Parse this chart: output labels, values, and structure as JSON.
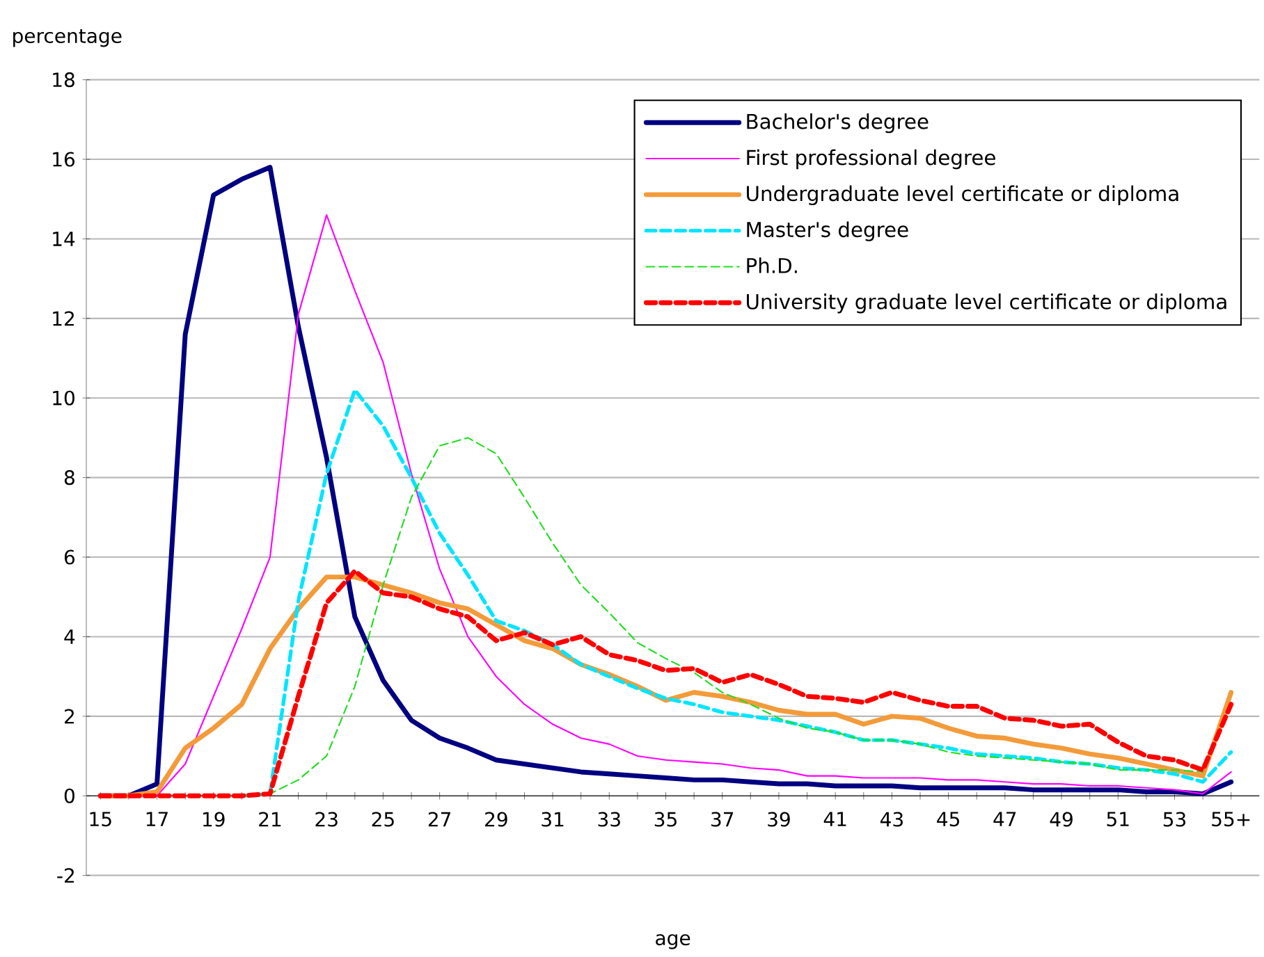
{
  "chart_data": {
    "type": "line",
    "xlabel": "age",
    "ylabel": "percentage",
    "categories": [
      "15",
      null,
      "17",
      null,
      "19",
      null,
      "21",
      null,
      "23",
      null,
      "25",
      null,
      "27",
      null,
      "29",
      null,
      "31",
      null,
      "33",
      null,
      "35",
      null,
      "37",
      null,
      "39",
      null,
      "41",
      null,
      "43",
      null,
      "45",
      null,
      "47",
      null,
      "49",
      null,
      "51",
      null,
      "53",
      null,
      "55+"
    ],
    "ylim": [
      -2,
      18
    ],
    "yticks": [
      -2,
      0,
      2,
      4,
      6,
      8,
      10,
      12,
      14,
      16,
      18
    ],
    "grid": "y",
    "legend": "top right",
    "series": [
      {
        "name": "Bachelor's degree",
        "color": "#000080",
        "line_style": "solid",
        "values": [
          0,
          0,
          0.3,
          11.6,
          15.1,
          15.5,
          15.8,
          11.8,
          8.5,
          4.5,
          2.9,
          1.9,
          1.45,
          1.2,
          0.9,
          0.8,
          0.7,
          0.6,
          0.55,
          0.5,
          0.45,
          0.4,
          0.4,
          0.35,
          0.3,
          0.3,
          0.25,
          0.25,
          0.25,
          0.2,
          0.2,
          0.2,
          0.2,
          0.15,
          0.15,
          0.15,
          0.15,
          0.1,
          0.1,
          0.05,
          0.35
        ]
      },
      {
        "name": "First professional degree",
        "color": "#ff00ff",
        "line_style": "solid",
        "values": [
          0,
          0,
          0,
          0.8,
          2.5,
          4.2,
          6.0,
          12.1,
          14.6,
          12.7,
          10.9,
          8.1,
          5.7,
          4.0,
          3.0,
          2.3,
          1.8,
          1.45,
          1.3,
          1.0,
          0.9,
          0.85,
          0.8,
          0.7,
          0.65,
          0.5,
          0.5,
          0.45,
          0.45,
          0.45,
          0.4,
          0.4,
          0.35,
          0.3,
          0.3,
          0.25,
          0.25,
          0.2,
          0.15,
          0.05,
          0.6
        ]
      },
      {
        "name": "Undergraduate level certificate or diploma",
        "color": "#f39b3a",
        "line_style": "solid",
        "values": [
          0,
          0,
          0.1,
          1.2,
          1.7,
          2.3,
          3.7,
          4.7,
          5.5,
          5.5,
          5.3,
          5.1,
          4.85,
          4.7,
          4.3,
          3.9,
          3.7,
          3.3,
          3.05,
          2.75,
          2.4,
          2.6,
          2.5,
          2.35,
          2.15,
          2.05,
          2.05,
          1.8,
          2.0,
          1.95,
          1.7,
          1.5,
          1.45,
          1.3,
          1.2,
          1.05,
          0.95,
          0.8,
          0.65,
          0.5,
          2.6
        ]
      },
      {
        "name": "Master's degree",
        "color": "#00e5ff",
        "line_style": "dashed",
        "values": [
          null,
          null,
          null,
          null,
          null,
          0,
          0.05,
          4.9,
          8.1,
          10.2,
          9.3,
          8.0,
          6.6,
          5.55,
          4.4,
          4.15,
          3.8,
          3.3,
          3.0,
          2.7,
          2.45,
          2.3,
          2.1,
          2.0,
          1.9,
          1.75,
          1.6,
          1.4,
          1.4,
          1.3,
          1.2,
          1.05,
          1.0,
          0.95,
          0.85,
          0.8,
          0.7,
          0.65,
          0.55,
          0.35,
          1.1
        ]
      },
      {
        "name": "Ph.D.",
        "color": "#22dd22",
        "line_style": "dashed",
        "values": [
          null,
          null,
          null,
          null,
          null,
          0,
          0.05,
          0.4,
          1.0,
          2.75,
          5.3,
          7.5,
          8.8,
          9.0,
          8.6,
          7.5,
          6.35,
          5.3,
          4.6,
          3.85,
          3.45,
          3.1,
          2.6,
          2.3,
          1.95,
          1.7,
          1.6,
          1.4,
          1.4,
          1.3,
          1.1,
          1.0,
          0.95,
          0.9,
          0.85,
          0.8,
          0.65,
          0.65,
          0.65,
          0.6,
          null
        ]
      },
      {
        "name": "University graduate level certificate or diploma",
        "color": "#ff0000",
        "line_style": "dashed",
        "values": [
          0,
          0,
          0,
          0,
          0,
          0,
          0.05,
          2.5,
          4.85,
          5.65,
          5.1,
          5.0,
          4.7,
          4.5,
          3.9,
          4.1,
          3.8,
          4.0,
          3.55,
          3.4,
          3.15,
          3.2,
          2.85,
          3.05,
          2.8,
          2.5,
          2.45,
          2.35,
          2.6,
          2.4,
          2.25,
          2.25,
          1.95,
          1.9,
          1.75,
          1.8,
          1.35,
          1.0,
          0.9,
          0.65,
          2.3
        ]
      }
    ]
  }
}
